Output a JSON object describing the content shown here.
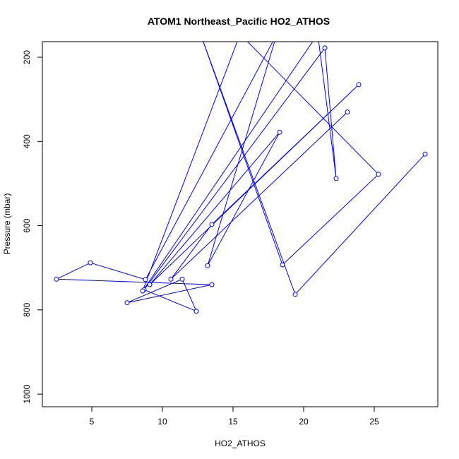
{
  "chart_data": {
    "type": "line",
    "title": "ATOM1 Northeast_Pacific HO2_ATHOS",
    "xlabel": "HO2_ATHOS",
    "ylabel": "Pressure (mbar)",
    "xlim": [
      1.5,
      29.5
    ],
    "ylim": [
      1030,
      163
    ],
    "y_reversed": true,
    "x_ticks": [
      5,
      10,
      15,
      20,
      25
    ],
    "y_ticks": [
      200,
      400,
      600,
      800,
      1000
    ],
    "grid": false,
    "legend": "none",
    "series": [
      {
        "color": "#0000ff",
        "points": [
          {
            "x": 23.1,
            "y": 330
          },
          {
            "x": 10.6,
            "y": 727
          },
          {
            "x": 13.5,
            "y": 597
          },
          {
            "x": 23.9,
            "y": 265
          },
          {
            "x": 9.1,
            "y": 740
          },
          {
            "x": 18.3,
            "y": 378
          },
          {
            "x": 13.2,
            "y": 695
          },
          {
            "x": 18.1,
            "y": 145
          },
          {
            "x": 8.8,
            "y": 728
          },
          {
            "x": 4.9,
            "y": 688
          },
          {
            "x": 2.5,
            "y": 727
          },
          {
            "x": 13.5,
            "y": 740
          },
          {
            "x": 7.5,
            "y": 783
          },
          {
            "x": 11.4,
            "y": 727
          },
          {
            "x": 12.4,
            "y": 803
          },
          {
            "x": 8.7,
            "y": 752
          },
          {
            "x": 21.5,
            "y": 178
          },
          {
            "x": 22.3,
            "y": 488
          },
          {
            "x": 21.0,
            "y": 145
          },
          {
            "x": 8.6,
            "y": 755
          },
          {
            "x": 15.5,
            "y": 145
          },
          {
            "x": 25.3,
            "y": 478
          },
          {
            "x": 18.5,
            "y": 693
          },
          {
            "x": 12.7,
            "y": 145
          },
          {
            "x": 19.4,
            "y": 763
          },
          {
            "x": 28.6,
            "y": 430
          }
        ]
      }
    ]
  }
}
